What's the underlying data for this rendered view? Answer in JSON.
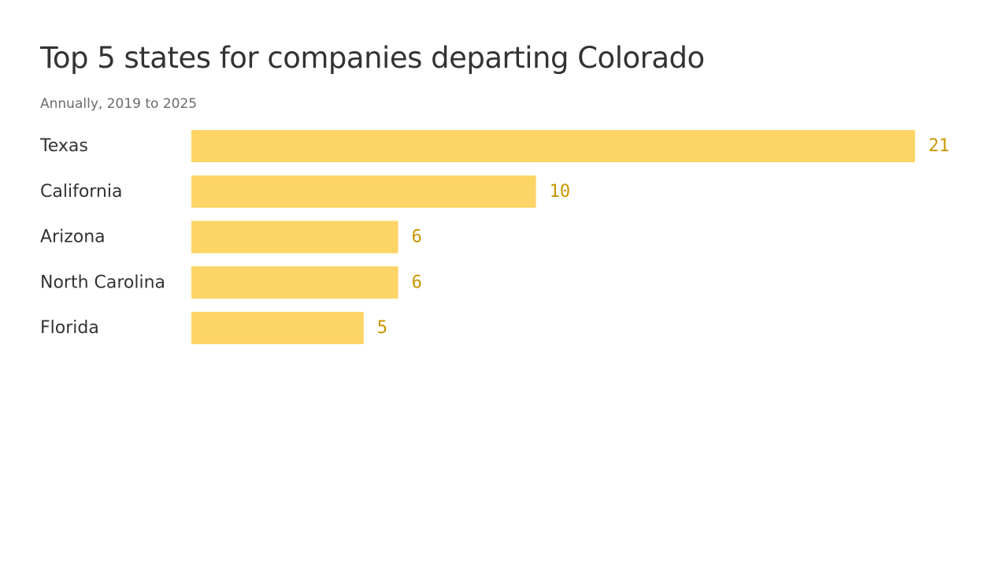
{
  "chart_data": {
    "type": "bar",
    "orientation": "horizontal",
    "title": "Top 5 states for companies departing Colorado",
    "subtitle": "Annually, 2019 to 2025",
    "categories": [
      "Texas",
      "California",
      "Arizona",
      "North Carolina",
      "Florida"
    ],
    "values": [
      21,
      10,
      6,
      6,
      5
    ],
    "xlabel": "",
    "ylabel": "",
    "xlim": [
      0,
      21
    ],
    "grid": false,
    "bar_color": "#fdd466",
    "value_label_color": "#c99600"
  }
}
